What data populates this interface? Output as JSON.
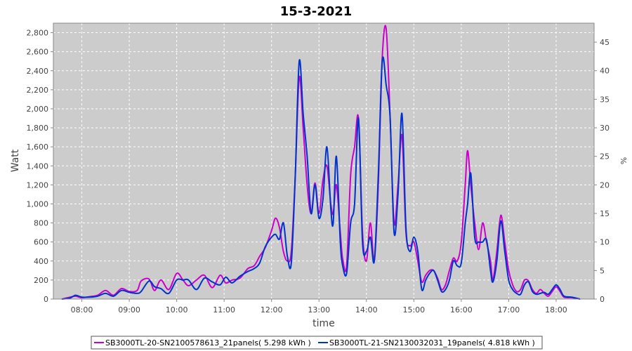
{
  "chart_data": {
    "type": "line",
    "title": "15-3-2021",
    "xlabel": "time",
    "ylabel": "Watt",
    "y2label": "%",
    "xlim": [
      "07:24",
      "18:48"
    ],
    "ylim": [
      0,
      2900
    ],
    "y2lim": [
      0,
      48.33
    ],
    "xticks": [
      "08:00",
      "09:00",
      "10:00",
      "11:00",
      "12:00",
      "13:00",
      "14:00",
      "15:00",
      "16:00",
      "17:00",
      "18:00"
    ],
    "yticks": [
      "0",
      "200",
      "400",
      "600",
      "800",
      "1,000",
      "1,200",
      "1,400",
      "1,600",
      "1,800",
      "2,000",
      "2,200",
      "2,400",
      "2,600",
      "2,800"
    ],
    "y2ticks": [
      "0",
      "5",
      "10",
      "15",
      "20",
      "25",
      "30",
      "35",
      "40",
      "45"
    ],
    "grid": true,
    "legend_position": "bottom",
    "colors": {
      "plot_bg": "#cccccc",
      "grid": "#ffffff"
    },
    "series": [
      {
        "name": "SB3000TL-20-SN2100578613_21panels( 5.298 kWh )",
        "color": "#cc00cc",
        "points": [
          [
            "07:35",
            0
          ],
          [
            "07:45",
            20
          ],
          [
            "07:52",
            30
          ],
          [
            "08:00",
            15
          ],
          [
            "08:10",
            25
          ],
          [
            "08:20",
            40
          ],
          [
            "08:30",
            90
          ],
          [
            "08:40",
            40
          ],
          [
            "08:50",
            110
          ],
          [
            "09:00",
            80
          ],
          [
            "09:10",
            90
          ],
          [
            "09:15",
            190
          ],
          [
            "09:25",
            210
          ],
          [
            "09:32",
            90
          ],
          [
            "09:40",
            200
          ],
          [
            "09:50",
            100
          ],
          [
            "10:00",
            270
          ],
          [
            "10:08",
            200
          ],
          [
            "10:15",
            140
          ],
          [
            "10:25",
            200
          ],
          [
            "10:35",
            250
          ],
          [
            "10:45",
            120
          ],
          [
            "10:55",
            250
          ],
          [
            "11:02",
            170
          ],
          [
            "11:10",
            200
          ],
          [
            "11:20",
            220
          ],
          [
            "11:30",
            320
          ],
          [
            "11:38",
            350
          ],
          [
            "11:45",
            450
          ],
          [
            "11:52",
            540
          ],
          [
            "12:00",
            720
          ],
          [
            "12:05",
            850
          ],
          [
            "12:10",
            750
          ],
          [
            "12:15",
            500
          ],
          [
            "12:20",
            400
          ],
          [
            "12:25",
            500
          ],
          [
            "12:30",
            1300
          ],
          [
            "12:35",
            2330
          ],
          [
            "12:40",
            1800
          ],
          [
            "12:45",
            1200
          ],
          [
            "12:50",
            900
          ],
          [
            "12:55",
            1220
          ],
          [
            "13:00",
            900
          ],
          [
            "13:05",
            1250
          ],
          [
            "13:10",
            1400
          ],
          [
            "13:15",
            1000
          ],
          [
            "13:18",
            900
          ],
          [
            "13:22",
            1200
          ],
          [
            "13:27",
            700
          ],
          [
            "13:30",
            420
          ],
          [
            "13:35",
            350
          ],
          [
            "13:40",
            1300
          ],
          [
            "13:45",
            1600
          ],
          [
            "13:50",
            1900
          ],
          [
            "13:55",
            700
          ],
          [
            "14:00",
            400
          ],
          [
            "14:05",
            800
          ],
          [
            "14:10",
            400
          ],
          [
            "14:15",
            1200
          ],
          [
            "14:20",
            2530
          ],
          [
            "14:25",
            2840
          ],
          [
            "14:30",
            1900
          ],
          [
            "14:35",
            800
          ],
          [
            "14:40",
            1200
          ],
          [
            "14:45",
            1720
          ],
          [
            "14:50",
            700
          ],
          [
            "14:55",
            560
          ],
          [
            "15:00",
            600
          ],
          [
            "15:05",
            400
          ],
          [
            "15:10",
            180
          ],
          [
            "15:15",
            250
          ],
          [
            "15:20",
            300
          ],
          [
            "15:25",
            300
          ],
          [
            "15:30",
            220
          ],
          [
            "15:35",
            100
          ],
          [
            "15:40",
            150
          ],
          [
            "15:45",
            300
          ],
          [
            "15:50",
            430
          ],
          [
            "15:55",
            400
          ],
          [
            "16:00",
            600
          ],
          [
            "16:05",
            1200
          ],
          [
            "16:08",
            1560
          ],
          [
            "16:12",
            1200
          ],
          [
            "16:17",
            800
          ],
          [
            "16:22",
            520
          ],
          [
            "16:27",
            800
          ],
          [
            "16:32",
            600
          ],
          [
            "16:37",
            400
          ],
          [
            "16:40",
            200
          ],
          [
            "16:45",
            500
          ],
          [
            "16:50",
            880
          ],
          [
            "16:55",
            600
          ],
          [
            "17:00",
            300
          ],
          [
            "17:05",
            150
          ],
          [
            "17:10",
            80
          ],
          [
            "17:15",
            100
          ],
          [
            "17:20",
            200
          ],
          [
            "17:25",
            190
          ],
          [
            "17:30",
            100
          ],
          [
            "17:35",
            60
          ],
          [
            "17:40",
            100
          ],
          [
            "17:45",
            60
          ],
          [
            "17:50",
            30
          ],
          [
            "17:55",
            80
          ],
          [
            "18:00",
            130
          ],
          [
            "18:05",
            80
          ],
          [
            "18:10",
            20
          ],
          [
            "18:20",
            15
          ],
          [
            "18:30",
            0
          ]
        ]
      },
      {
        "name": "SB3000TL-21-SN2130032031_19panels( 4.818 kWh )",
        "color": "#0033cc",
        "points": [
          [
            "07:35",
            0
          ],
          [
            "07:45",
            10
          ],
          [
            "07:52",
            40
          ],
          [
            "08:00",
            20
          ],
          [
            "08:10",
            20
          ],
          [
            "08:20",
            30
          ],
          [
            "08:30",
            60
          ],
          [
            "08:40",
            30
          ],
          [
            "08:50",
            90
          ],
          [
            "09:00",
            70
          ],
          [
            "09:10",
            60
          ],
          [
            "09:15",
            80
          ],
          [
            "09:25",
            190
          ],
          [
            "09:32",
            130
          ],
          [
            "09:40",
            110
          ],
          [
            "09:50",
            60
          ],
          [
            "10:00",
            200
          ],
          [
            "10:08",
            200
          ],
          [
            "10:15",
            200
          ],
          [
            "10:25",
            100
          ],
          [
            "10:35",
            220
          ],
          [
            "10:45",
            180
          ],
          [
            "10:55",
            150
          ],
          [
            "11:02",
            230
          ],
          [
            "11:10",
            170
          ],
          [
            "11:20",
            240
          ],
          [
            "11:30",
            290
          ],
          [
            "11:38",
            320
          ],
          [
            "11:45",
            380
          ],
          [
            "11:52",
            550
          ],
          [
            "12:00",
            650
          ],
          [
            "12:05",
            680
          ],
          [
            "12:10",
            630
          ],
          [
            "12:15",
            800
          ],
          [
            "12:20",
            450
          ],
          [
            "12:25",
            380
          ],
          [
            "12:30",
            1300
          ],
          [
            "12:35",
            2500
          ],
          [
            "12:40",
            1950
          ],
          [
            "12:45",
            1500
          ],
          [
            "12:50",
            900
          ],
          [
            "12:55",
            1200
          ],
          [
            "13:00",
            850
          ],
          [
            "13:05",
            1050
          ],
          [
            "13:10",
            1600
          ],
          [
            "13:15",
            950
          ],
          [
            "13:18",
            800
          ],
          [
            "13:22",
            1500
          ],
          [
            "13:27",
            600
          ],
          [
            "13:30",
            350
          ],
          [
            "13:35",
            270
          ],
          [
            "13:40",
            800
          ],
          [
            "13:45",
            1000
          ],
          [
            "13:50",
            1900
          ],
          [
            "13:55",
            600
          ],
          [
            "14:00",
            500
          ],
          [
            "14:05",
            650
          ],
          [
            "14:10",
            400
          ],
          [
            "14:15",
            1300
          ],
          [
            "14:20",
            2500
          ],
          [
            "14:25",
            2250
          ],
          [
            "14:30",
            1900
          ],
          [
            "14:35",
            700
          ],
          [
            "14:40",
            1100
          ],
          [
            "14:45",
            1950
          ],
          [
            "14:50",
            750
          ],
          [
            "14:55",
            500
          ],
          [
            "15:00",
            650
          ],
          [
            "15:05",
            500
          ],
          [
            "15:10",
            100
          ],
          [
            "15:15",
            200
          ],
          [
            "15:20",
            270
          ],
          [
            "15:25",
            300
          ],
          [
            "15:30",
            200
          ],
          [
            "15:35",
            80
          ],
          [
            "15:40",
            100
          ],
          [
            "15:45",
            200
          ],
          [
            "15:50",
            400
          ],
          [
            "15:55",
            350
          ],
          [
            "16:00",
            380
          ],
          [
            "16:05",
            800
          ],
          [
            "16:08",
            1000
          ],
          [
            "16:12",
            1320
          ],
          [
            "16:17",
            650
          ],
          [
            "16:22",
            600
          ],
          [
            "16:27",
            600
          ],
          [
            "16:32",
            620
          ],
          [
            "16:37",
            300
          ],
          [
            "16:40",
            180
          ],
          [
            "16:45",
            400
          ],
          [
            "16:50",
            820
          ],
          [
            "16:55",
            500
          ],
          [
            "17:00",
            200
          ],
          [
            "17:05",
            100
          ],
          [
            "17:10",
            60
          ],
          [
            "17:15",
            50
          ],
          [
            "17:20",
            150
          ],
          [
            "17:25",
            180
          ],
          [
            "17:30",
            80
          ],
          [
            "17:35",
            50
          ],
          [
            "17:40",
            60
          ],
          [
            "17:45",
            70
          ],
          [
            "17:50",
            50
          ],
          [
            "17:55",
            100
          ],
          [
            "18:00",
            150
          ],
          [
            "18:05",
            100
          ],
          [
            "18:10",
            30
          ],
          [
            "18:20",
            20
          ],
          [
            "18:30",
            0
          ]
        ]
      }
    ]
  }
}
